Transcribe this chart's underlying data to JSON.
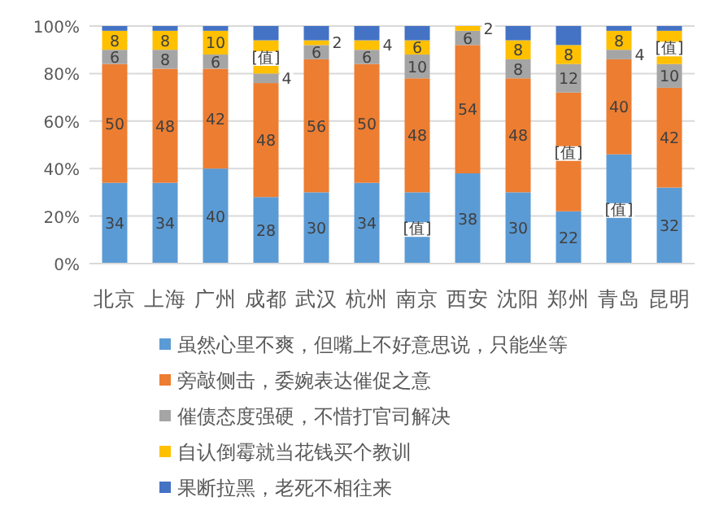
{
  "chart_data": {
    "type": "bar",
    "stacked": true,
    "categories": [
      "北京",
      "上海",
      "广州",
      "成都",
      "武汉",
      "杭州",
      "南京",
      "西安",
      "沈阳",
      "郑州",
      "青岛",
      "昆明"
    ],
    "series": [
      {
        "name": "虽然心里不爽，但嘴上不好意思说，只能坐等",
        "color": "#5b9bd5",
        "values": [
          34,
          34,
          40,
          28,
          30,
          34,
          30,
          38,
          30,
          22,
          46,
          32
        ],
        "value_labels": [
          "34",
          "34",
          "40",
          "28",
          "30",
          "34",
          "[值]",
          "38",
          "30",
          "22",
          "[值]",
          "32"
        ]
      },
      {
        "name": "旁敲侧击，委婉表达催促之意",
        "color": "#ed7d31",
        "values": [
          50,
          48,
          42,
          48,
          56,
          50,
          48,
          54,
          48,
          50,
          40,
          42
        ],
        "value_labels": [
          "50",
          "48",
          "42",
          "48",
          "56",
          "50",
          "48",
          "54",
          "48",
          "[值]",
          "40",
          "42"
        ]
      },
      {
        "name": "催债态度强硬，不惜打官司解决",
        "color": "#a5a5a5",
        "values": [
          6,
          8,
          6,
          4,
          6,
          6,
          10,
          6,
          8,
          12,
          4,
          10
        ],
        "value_labels": [
          "6",
          "8",
          "6",
          "4",
          "6",
          "6",
          "10",
          "6",
          "8",
          "12",
          "4",
          "10"
        ]
      },
      {
        "name": "自认倒霉就当花钱买个教训",
        "color": "#ffc000",
        "values": [
          8,
          8,
          10,
          14,
          2,
          4,
          6,
          2,
          8,
          8,
          8,
          14
        ],
        "value_labels": [
          "8",
          "8",
          "10",
          "[值]",
          "2",
          "4",
          "6",
          "2",
          "8",
          "8",
          "8",
          "[值]"
        ]
      },
      {
        "name": "果断拉黑，老死不相往来",
        "color": "#4472c4",
        "values": [
          2,
          2,
          2,
          6,
          6,
          6,
          6,
          0,
          6,
          8,
          2,
          2
        ],
        "value_labels": [
          null,
          null,
          null,
          null,
          null,
          null,
          null,
          null,
          null,
          null,
          null,
          null
        ]
      }
    ],
    "ylim": [
      0,
      100
    ],
    "yticks": [
      {
        "value": 0,
        "label": "0%"
      },
      {
        "value": 20,
        "label": "20%"
      },
      {
        "value": 40,
        "label": "40%"
      },
      {
        "value": 60,
        "label": "60%"
      },
      {
        "value": 80,
        "label": "80%"
      },
      {
        "value": 100,
        "label": "100%"
      }
    ],
    "grid": "y",
    "legend": "bottom"
  }
}
